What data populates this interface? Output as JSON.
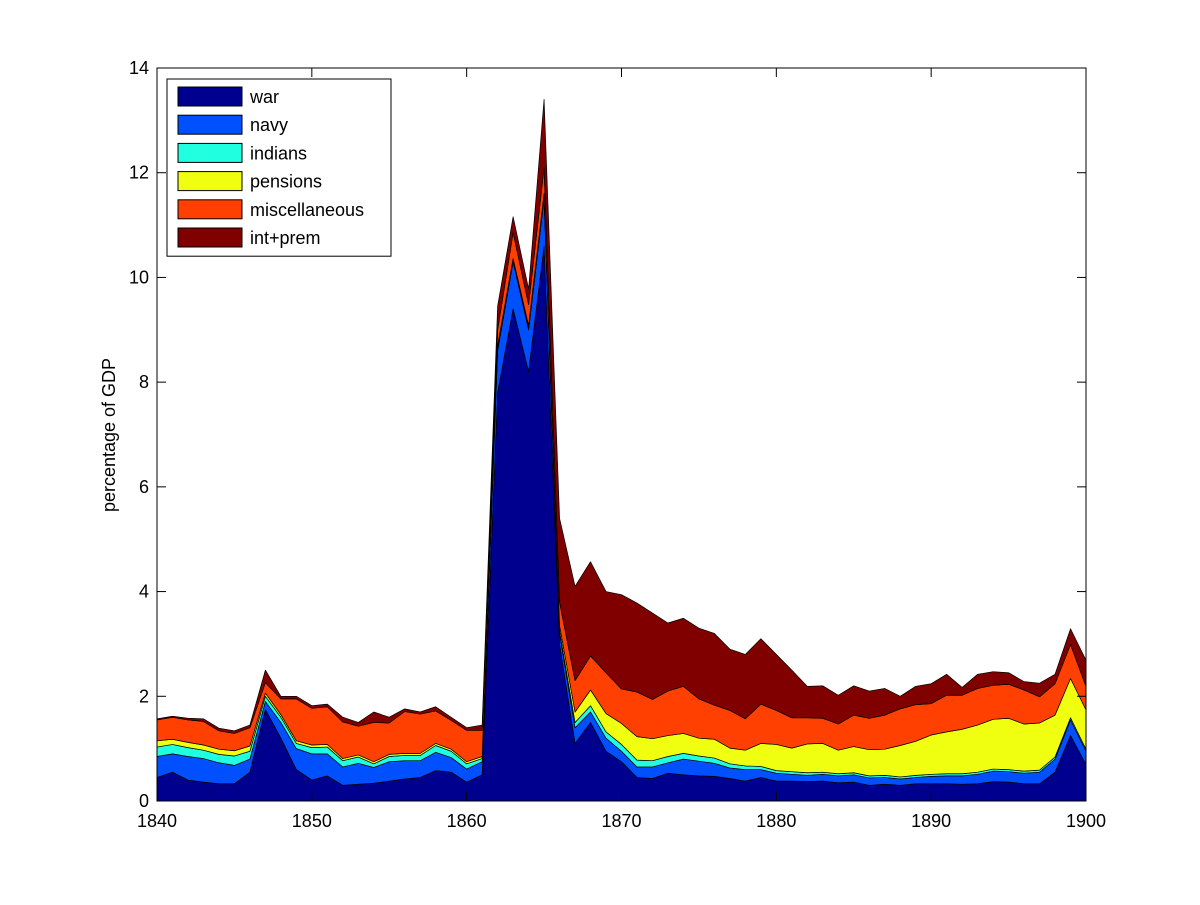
{
  "chart_data": {
    "type": "area",
    "stacked": true,
    "title": "",
    "xlabel": "",
    "ylabel": "percentage of GDP",
    "xlim": [
      1840,
      1900
    ],
    "ylim": [
      0,
      14
    ],
    "xticks": [
      1840,
      1850,
      1860,
      1870,
      1880,
      1890,
      1900
    ],
    "yticks": [
      0,
      2,
      4,
      6,
      8,
      10,
      12,
      14
    ],
    "legend_position": "top-left",
    "x": [
      1840,
      1841,
      1842,
      1843,
      1844,
      1845,
      1846,
      1847,
      1848,
      1849,
      1850,
      1851,
      1852,
      1853,
      1854,
      1855,
      1856,
      1857,
      1858,
      1859,
      1860,
      1861,
      1862,
      1863,
      1864,
      1865,
      1866,
      1867,
      1868,
      1869,
      1870,
      1871,
      1872,
      1873,
      1874,
      1875,
      1876,
      1877,
      1878,
      1879,
      1880,
      1881,
      1882,
      1883,
      1884,
      1885,
      1886,
      1887,
      1888,
      1889,
      1890,
      1891,
      1892,
      1893,
      1894,
      1895,
      1896,
      1897,
      1898,
      1899,
      1900
    ],
    "series": [
      {
        "name": "war",
        "color": "#00008f",
        "values": [
          0.45,
          0.55,
          0.4,
          0.36,
          0.33,
          0.33,
          0.55,
          1.75,
          1.2,
          0.6,
          0.4,
          0.48,
          0.3,
          0.32,
          0.34,
          0.38,
          0.42,
          0.45,
          0.58,
          0.55,
          0.36,
          0.5,
          7.8,
          9.4,
          8.2,
          10.6,
          3.0,
          1.1,
          1.5,
          0.95,
          0.75,
          0.45,
          0.43,
          0.53,
          0.5,
          0.48,
          0.47,
          0.43,
          0.38,
          0.45,
          0.38,
          0.38,
          0.37,
          0.38,
          0.35,
          0.36,
          0.3,
          0.32,
          0.3,
          0.33,
          0.33,
          0.33,
          0.32,
          0.33,
          0.37,
          0.36,
          0.33,
          0.33,
          0.55,
          1.25,
          0.7
        ]
      },
      {
        "name": "navy",
        "color": "#0050ff",
        "values": [
          0.4,
          0.35,
          0.45,
          0.45,
          0.4,
          0.35,
          0.25,
          0.15,
          0.3,
          0.4,
          0.5,
          0.42,
          0.35,
          0.4,
          0.3,
          0.37,
          0.35,
          0.32,
          0.35,
          0.28,
          0.25,
          0.25,
          0.8,
          0.9,
          0.8,
          0.9,
          0.2,
          0.3,
          0.2,
          0.25,
          0.2,
          0.2,
          0.22,
          0.2,
          0.3,
          0.28,
          0.25,
          0.2,
          0.22,
          0.15,
          0.15,
          0.13,
          0.12,
          0.13,
          0.13,
          0.14,
          0.14,
          0.13,
          0.12,
          0.12,
          0.14,
          0.15,
          0.16,
          0.18,
          0.2,
          0.2,
          0.2,
          0.22,
          0.25,
          0.3,
          0.25
        ]
      },
      {
        "name": "indians",
        "color": "#20ffe0",
        "values": [
          0.18,
          0.18,
          0.17,
          0.16,
          0.16,
          0.18,
          0.15,
          0.1,
          0.1,
          0.1,
          0.12,
          0.13,
          0.12,
          0.12,
          0.07,
          0.1,
          0.1,
          0.1,
          0.13,
          0.12,
          0.1,
          0.06,
          0.08,
          0.04,
          0.05,
          0.05,
          0.05,
          0.1,
          0.12,
          0.12,
          0.13,
          0.13,
          0.12,
          0.12,
          0.11,
          0.1,
          0.1,
          0.08,
          0.07,
          0.06,
          0.05,
          0.05,
          0.05,
          0.04,
          0.04,
          0.04,
          0.04,
          0.04,
          0.04,
          0.04,
          0.04,
          0.04,
          0.04,
          0.04,
          0.04,
          0.04,
          0.04,
          0.04,
          0.04,
          0.04,
          0.04
        ]
      },
      {
        "name": "pensions",
        "color": "#f0ff10",
        "values": [
          0.12,
          0.1,
          0.1,
          0.1,
          0.1,
          0.1,
          0.1,
          0.06,
          0.05,
          0.05,
          0.05,
          0.05,
          0.04,
          0.04,
          0.04,
          0.04,
          0.04,
          0.04,
          0.04,
          0.04,
          0.04,
          0.04,
          0.02,
          0.02,
          0.03,
          0.05,
          0.1,
          0.2,
          0.3,
          0.35,
          0.4,
          0.45,
          0.42,
          0.4,
          0.38,
          0.34,
          0.36,
          0.3,
          0.3,
          0.44,
          0.5,
          0.45,
          0.55,
          0.55,
          0.45,
          0.5,
          0.5,
          0.5,
          0.6,
          0.65,
          0.75,
          0.8,
          0.85,
          0.9,
          0.95,
          0.98,
          0.9,
          0.9,
          0.8,
          0.75,
          0.75
        ]
      },
      {
        "name": "miscellaneous",
        "color": "#ff4000",
        "values": [
          0.4,
          0.42,
          0.43,
          0.45,
          0.35,
          0.33,
          0.35,
          0.2,
          0.3,
          0.8,
          0.7,
          0.72,
          0.7,
          0.55,
          0.75,
          0.6,
          0.8,
          0.75,
          0.62,
          0.55,
          0.6,
          0.5,
          0.3,
          0.5,
          0.4,
          0.5,
          0.45,
          0.6,
          0.65,
          0.78,
          0.66,
          0.85,
          0.75,
          0.85,
          0.9,
          0.75,
          0.65,
          0.72,
          0.6,
          0.75,
          0.65,
          0.58,
          0.5,
          0.48,
          0.5,
          0.6,
          0.6,
          0.65,
          0.7,
          0.7,
          0.6,
          0.7,
          0.65,
          0.7,
          0.65,
          0.65,
          0.65,
          0.5,
          0.6,
          0.65,
          0.45
        ]
      },
      {
        "name": "int+prem",
        "color": "#800000",
        "values": [
          0.02,
          0.02,
          0.03,
          0.05,
          0.05,
          0.05,
          0.05,
          0.24,
          0.05,
          0.05,
          0.05,
          0.05,
          0.09,
          0.07,
          0.2,
          0.11,
          0.05,
          0.04,
          0.08,
          0.06,
          0.05,
          0.1,
          0.45,
          0.3,
          0.3,
          1.3,
          1.6,
          1.8,
          1.8,
          1.55,
          1.8,
          1.7,
          1.65,
          1.3,
          1.3,
          1.35,
          1.37,
          1.17,
          1.23,
          1.25,
          1.07,
          0.91,
          0.6,
          0.62,
          0.55,
          0.56,
          0.52,
          0.51,
          0.24,
          0.35,
          0.38,
          0.4,
          0.15,
          0.27,
          0.26,
          0.22,
          0.16,
          0.26,
          0.18,
          0.3,
          0.5
        ]
      }
    ]
  }
}
